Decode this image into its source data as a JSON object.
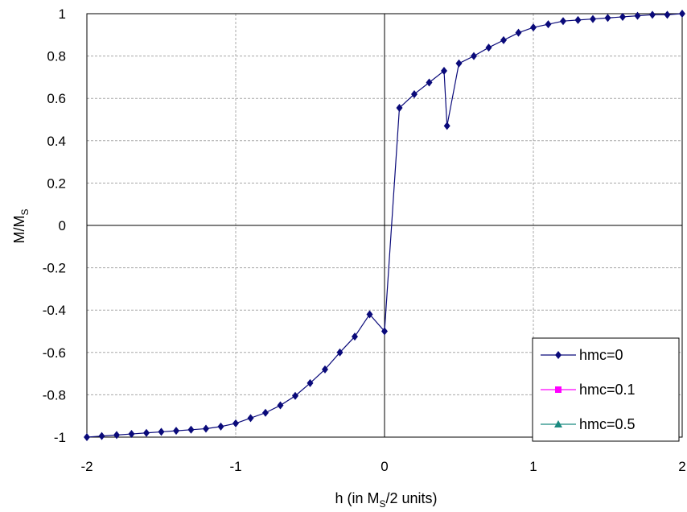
{
  "chart_data": {
    "type": "line",
    "xlabel": {
      "main": "h (in M",
      "sub": "S",
      "tail": "/2 units)"
    },
    "ylabel": {
      "main": "M/M",
      "sub": "S"
    },
    "xlim": [
      -2,
      2
    ],
    "ylim": [
      -1,
      1
    ],
    "x_ticks": [
      "-2",
      "-1",
      "0",
      "1",
      "2"
    ],
    "y_ticks": [
      "1",
      "0.8",
      "0.6",
      "0.4",
      "0.2",
      "0",
      "-0.2",
      "-0.4",
      "-0.6",
      "-0.8",
      "-1"
    ],
    "grid": true,
    "legend_position": "bottom-right",
    "series": [
      {
        "name": "hmc=0",
        "color": "#0a0a7a",
        "marker": "diamond",
        "branches": [
          {
            "x": [
              -2.0,
              -1.9,
              -1.8,
              -1.7,
              -1.6,
              -1.5,
              -1.4,
              -1.3,
              -1.2,
              -1.1,
              -1.0,
              -0.9,
              -0.8,
              -0.7,
              -0.6,
              -0.5,
              -0.4,
              -0.3,
              -0.2,
              -0.1,
              0.0,
              0.1,
              0.2,
              0.3,
              0.4,
              0.42,
              0.5,
              0.6,
              0.7,
              0.8,
              0.9,
              1.0,
              1.1,
              1.2,
              1.3,
              1.4,
              1.5,
              1.6,
              1.7,
              1.8,
              1.9,
              2.0
            ],
            "y": [
              -1.0,
              -0.995,
              -0.99,
              -0.985,
              -0.98,
              -0.975,
              -0.97,
              -0.965,
              -0.96,
              -0.95,
              -0.935,
              -0.91,
              -0.885,
              -0.85,
              -0.805,
              -0.745,
              -0.68,
              -0.6,
              -0.525,
              -0.42,
              -0.5,
              0.555,
              0.62,
              0.675,
              0.73,
              0.47,
              0.765,
              0.8,
              0.84,
              0.875,
              0.91,
              0.935,
              0.95,
              0.965,
              0.97,
              0.975,
              0.98,
              0.985,
              0.99,
              0.995,
              0.995,
              1.0
            ]
          }
        ]
      },
      {
        "name": "hmc=0.1",
        "color": "#ff00ff",
        "marker": "square",
        "branches": []
      },
      {
        "name": "hmc=0.5",
        "color": "#1a8a80",
        "marker": "triangle",
        "branches": []
      }
    ]
  }
}
